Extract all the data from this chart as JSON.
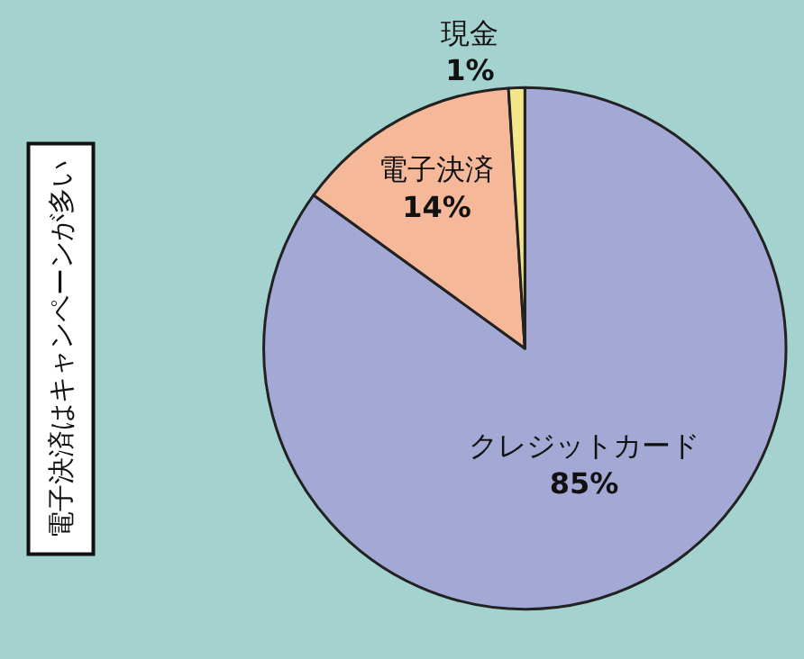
{
  "chart_data": {
    "type": "pie",
    "categories": [
      "クレジットカード",
      "電子決済",
      "現金"
    ],
    "values": [
      85,
      14,
      1
    ],
    "colors": [
      "#a3a8d4",
      "#f5b99a",
      "#f3e68a"
    ],
    "value_labels": [
      "85%",
      "14%",
      "1%"
    ],
    "legend": false,
    "annotations": [
      "電子決済はキャンペーンが多い"
    ]
  }
}
